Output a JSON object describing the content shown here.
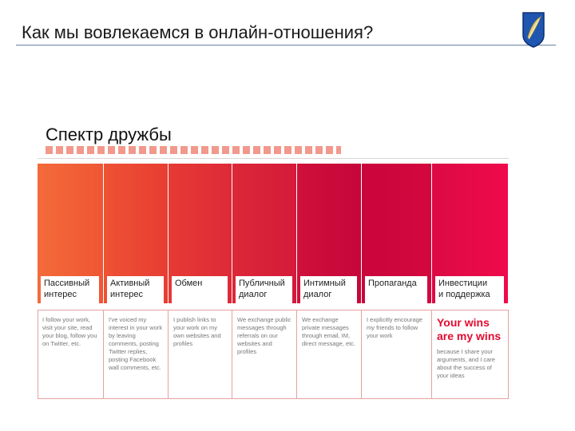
{
  "slide": {
    "title": "Как мы вовлекаемся в онлайн-отношения?",
    "subtitle": "Спектр дружбы",
    "logo_icon": "feather-crest-icon"
  },
  "spectrum": {
    "colors": [
      "#f26a3d",
      "#ea4a33",
      "#e43634",
      "#da2538",
      "#ce1138",
      "#c6063a",
      "#d8083e",
      "#ed0a4a"
    ],
    "stages": [
      {
        "label": "Пассивный\nинтерес",
        "description": "I follow your work, visit your site, read your blog, follow you on Twitter, etc."
      },
      {
        "label": "Активный\nинтерес",
        "description": "I've voiced my interest in your work by leaving comments, posting Twitter replies, posting Facebook wall comments, etc."
      },
      {
        "label": "Обмен",
        "description": "I publish links to your work on my own websites and profiles"
      },
      {
        "label": "Публичный\nдиалог",
        "description": "We exchange public messages through referrals on our websites and profiles"
      },
      {
        "label": "Интимный\nдиалог",
        "description": "We exchange private messages through email, IM, direct message, etc."
      },
      {
        "label": "Пропаганда",
        "description": "I explicitly encourage my friends to follow your work"
      },
      {
        "label": "Инвестиции\nи поддержка",
        "headline": "Your wins are my wins",
        "description": "because I share your arguments, and I care about the success of your ideas"
      }
    ]
  }
}
